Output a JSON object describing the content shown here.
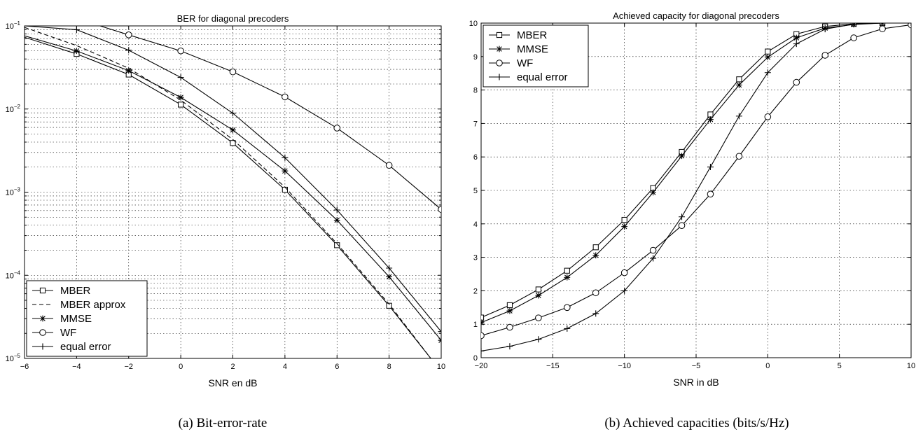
{
  "captions": {
    "a": "(a) Bit-error-rate",
    "b": "(b) Achieved capacities (bits/s/Hz)"
  },
  "chart_data": [
    {
      "type": "line",
      "title": "BER for diagonal precoders",
      "xlabel": "SNR en dB",
      "ylabel": "",
      "xlim": [
        -6,
        10
      ],
      "ylim": [
        1e-05,
        0.1
      ],
      "yscale": "log",
      "grid": true,
      "legend_position": "bottom-left",
      "xticks": [
        -6,
        -4,
        -2,
        0,
        2,
        4,
        6,
        8,
        10
      ],
      "xtick_labels": [
        "−6",
        "−4",
        "−2",
        "0",
        "2",
        "4",
        "6",
        "8",
        "10"
      ],
      "yticks": [
        1e-05,
        0.0001,
        0.001,
        0.01,
        0.1
      ],
      "ytick_labels": [
        {
          "base": "10",
          "exp": "−5"
        },
        {
          "base": "10",
          "exp": "−4"
        },
        {
          "base": "10",
          "exp": "−3"
        },
        {
          "base": "10",
          "exp": "−2"
        },
        {
          "base": "10",
          "exp": "−1"
        }
      ],
      "series": [
        {
          "name": "MBER",
          "marker": "square",
          "dash": false,
          "x": [
            -6,
            -4,
            -2,
            0,
            2,
            4,
            6,
            8,
            9.6
          ],
          "y": [
            0.073,
            0.046,
            0.026,
            0.0113,
            0.0039,
            0.00107,
            0.00023,
            4.3e-05,
            1e-05
          ],
          "marker_x": [
            -4,
            -2,
            0,
            2,
            4,
            6,
            8
          ]
        },
        {
          "name": "MBER approx",
          "marker": "none",
          "dash": true,
          "x": [
            -6,
            -4,
            -2,
            0,
            2,
            4,
            6,
            8,
            9.6
          ],
          "y": [
            0.096,
            0.058,
            0.031,
            0.0128,
            0.0043,
            0.00115,
            0.00024,
            4.5e-05,
            1e-05
          ],
          "marker_x": []
        },
        {
          "name": "MMSE",
          "marker": "star",
          "dash": false,
          "x": [
            -6,
            -4,
            -2,
            0,
            2,
            4,
            6,
            8,
            10
          ],
          "y": [
            0.076,
            0.05,
            0.029,
            0.0138,
            0.0056,
            0.0018,
            0.00046,
            9.6e-05,
            1.65e-05
          ],
          "marker_x": [
            -4,
            -2,
            0,
            2,
            4,
            6,
            8,
            10
          ]
        },
        {
          "name": "WF",
          "marker": "circle",
          "dash": false,
          "x": [
            -3.1,
            -2,
            0,
            2,
            4,
            6,
            8,
            10
          ],
          "y": [
            0.1,
            0.078,
            0.05,
            0.028,
            0.014,
            0.0059,
            0.0021,
            0.00062
          ],
          "marker_x": [
            -2,
            0,
            2,
            4,
            6,
            8,
            10
          ]
        },
        {
          "name": "equal error",
          "marker": "plus",
          "dash": false,
          "x": [
            -6,
            -4,
            -2,
            0,
            2,
            4,
            6,
            8,
            10
          ],
          "y": [
            0.1,
            0.09,
            0.051,
            0.024,
            0.0089,
            0.0026,
            0.00061,
            0.000122,
            2.1e-05
          ],
          "marker_x": [
            -4,
            -2,
            0,
            2,
            4,
            6,
            8,
            10
          ]
        }
      ]
    },
    {
      "type": "line",
      "title": "Achieved capacity for diagonal precoders",
      "xlabel": "SNR in dB",
      "ylabel": "",
      "xlim": [
        -20,
        10
      ],
      "ylim": [
        0,
        10
      ],
      "yscale": "linear",
      "grid": true,
      "legend_position": "top-left",
      "xticks": [
        -20,
        -15,
        -10,
        -5,
        0,
        5,
        10
      ],
      "xtick_labels": [
        "−20",
        "−15",
        "−10",
        "−5",
        "0",
        "5",
        "10"
      ],
      "yticks": [
        0,
        1,
        2,
        3,
        4,
        5,
        6,
        7,
        8,
        9,
        10
      ],
      "ytick_labels": [
        "0",
        "1",
        "2",
        "3",
        "4",
        "5",
        "6",
        "7",
        "8",
        "9",
        "10"
      ],
      "series": [
        {
          "name": "MBER",
          "marker": "square",
          "dash": false,
          "x": [
            -20,
            -18,
            -16,
            -14,
            -12,
            -10,
            -8,
            -6,
            -4,
            -2,
            0,
            2,
            4,
            6,
            8,
            10
          ],
          "y": [
            1.2,
            1.57,
            2.04,
            2.6,
            3.3,
            4.12,
            5.07,
            6.15,
            7.27,
            8.32,
            9.15,
            9.67,
            9.9,
            9.98,
            10,
            10
          ]
        },
        {
          "name": "MMSE",
          "marker": "star",
          "dash": false,
          "x": [
            -20,
            -18,
            -16,
            -14,
            -12,
            -10,
            -8,
            -6,
            -4,
            -2,
            0,
            2,
            4,
            6,
            8,
            10
          ],
          "y": [
            1.05,
            1.4,
            1.86,
            2.4,
            3.06,
            3.92,
            4.94,
            6.03,
            7.12,
            8.15,
            8.98,
            9.56,
            9.85,
            9.96,
            10,
            10
          ]
        },
        {
          "name": "WF",
          "marker": "circle",
          "dash": false,
          "x": [
            -20,
            -18,
            -16,
            -14,
            -12,
            -10,
            -8,
            -6,
            -4,
            -2,
            0,
            2,
            4,
            6,
            8,
            10
          ],
          "y": [
            0.66,
            0.91,
            1.19,
            1.5,
            1.94,
            2.54,
            3.21,
            3.95,
            4.89,
            6.02,
            7.2,
            8.23,
            9.04,
            9.56,
            9.83,
            9.95
          ]
        },
        {
          "name": "equal error",
          "marker": "plus",
          "dash": false,
          "x": [
            -20,
            -18,
            -16,
            -14,
            -12,
            -10,
            -8,
            -6,
            -4,
            -2,
            0,
            2,
            4,
            6,
            8,
            10
          ],
          "y": [
            0.2,
            0.34,
            0.55,
            0.87,
            1.32,
            2.0,
            2.97,
            4.21,
            5.7,
            7.22,
            8.52,
            9.38,
            9.82,
            9.97,
            10,
            10
          ]
        }
      ]
    }
  ]
}
